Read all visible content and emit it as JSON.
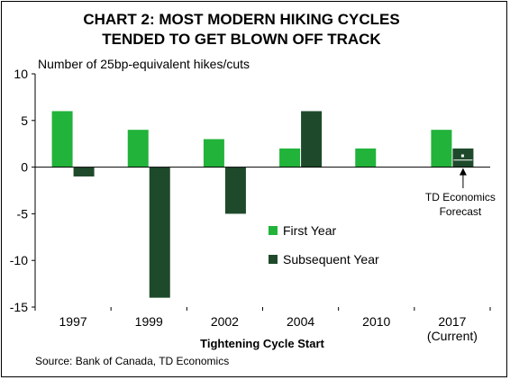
{
  "chart_data": {
    "type": "bar",
    "title": [
      "CHART 2: MOST MODERN HIKING CYCLES",
      "TENDED TO GET BLOWN OFF TRACK"
    ],
    "ylabel": "Number of 25bp-equivalent hikes/cuts",
    "xlabel": "Tightening Cycle Start",
    "categories": [
      "1997",
      "1999",
      "2002",
      "2004",
      "2010",
      "2017"
    ],
    "category_sublabels": [
      "",
      "",
      "",
      "",
      "",
      "(Current)"
    ],
    "ylim": [
      -15,
      10
    ],
    "yticks": [
      10,
      5,
      0,
      -5,
      -10,
      -15
    ],
    "series": [
      {
        "name": "First Year",
        "color": "#22b33a",
        "values": [
          6,
          4,
          3,
          2,
          2,
          4
        ]
      },
      {
        "name": "Subsequent Year",
        "color": "#1e4a2b",
        "values": [
          -1,
          -14,
          -5,
          6,
          null,
          2
        ]
      }
    ],
    "forecast": {
      "category": "2017",
      "series": "Subsequent Year",
      "label": [
        "TD Economics",
        "Forecast"
      ]
    },
    "legend_position": "center-right",
    "grid": false,
    "source": "Source: Bank of Canada, TD Economics"
  }
}
